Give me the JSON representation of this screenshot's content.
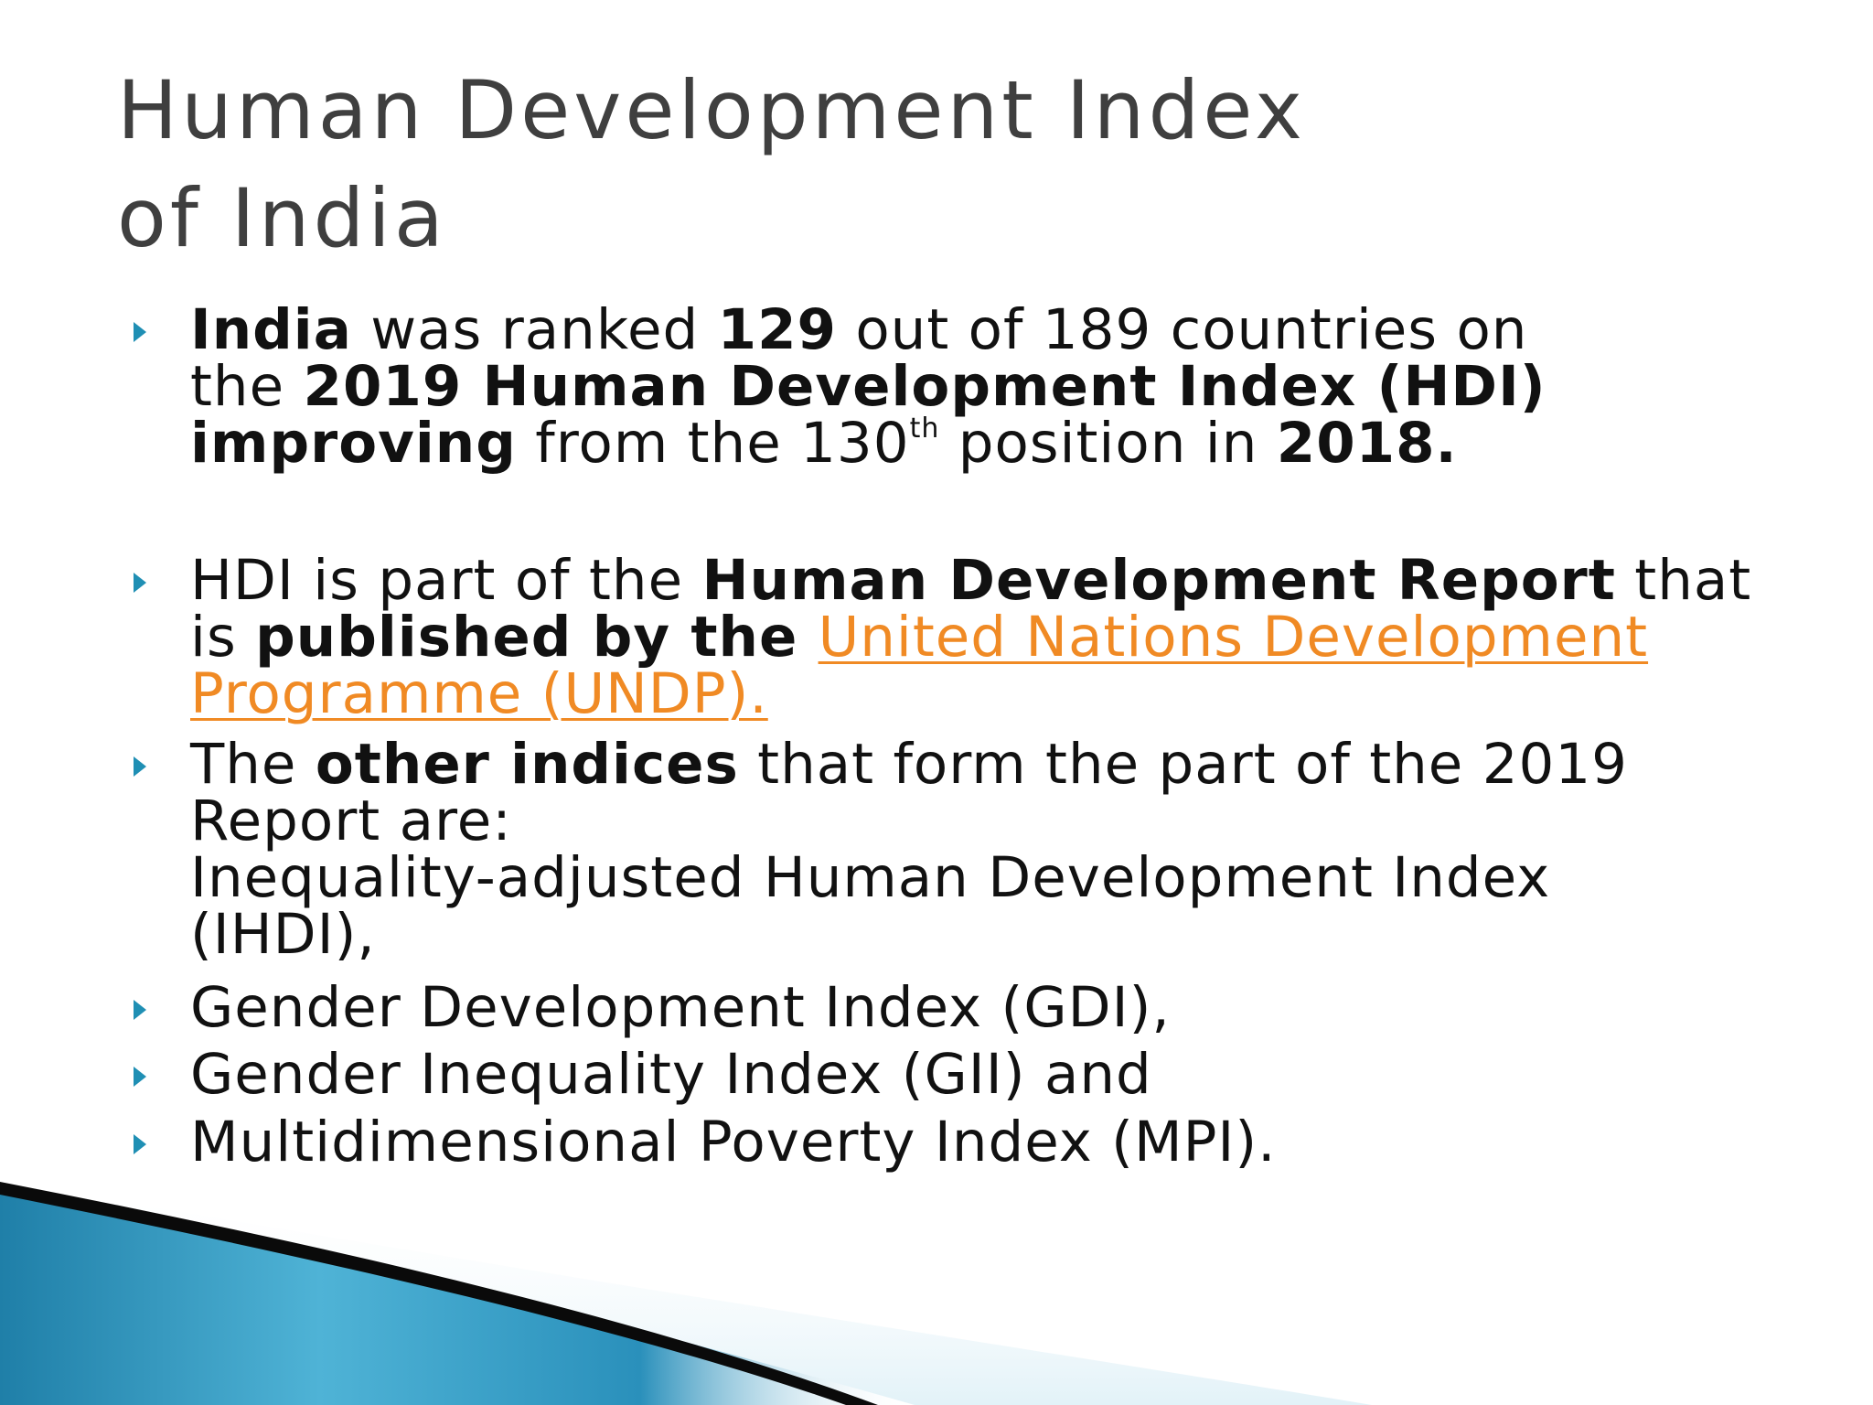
{
  "slide": {
    "title_line1": "Human Development Index",
    "title_line2": "of India",
    "bullets": [
      {
        "lines": [
          [
            "India",
            " was ranked ",
            "129",
            " out of 189 countries on"
          ],
          [
            "the ",
            "2019 Human Development Index (HDI)"
          ],
          [
            "improving",
            " from the ",
            "130",
            "th",
            " position in ",
            "2018."
          ]
        ]
      },
      {
        "lines": [
          [
            "HDI is part of the ",
            "Human Development Report",
            " that"
          ],
          [
            "is ",
            "published by the ",
            "United Nations Development"
          ],
          [
            "Programme (UNDP)."
          ]
        ]
      },
      {
        "lines": [
          [
            "The ",
            "other indices",
            " that form the part of the 2019"
          ],
          [
            "Report are:"
          ],
          [
            "Inequality-adjusted Human Development Index"
          ],
          [
            "(IHDI),"
          ]
        ]
      },
      {
        "text": "Gender Development Index (GDI),"
      },
      {
        "text": "Gender Inequality Index (GII) and"
      },
      {
        "text": "Multidimensional Poverty Index (MPI)."
      }
    ]
  },
  "colors": {
    "title": "#3f3f3f",
    "text": "#111111",
    "link": "#f08a24",
    "bullet_marker": "#1f8fb4",
    "decor_blue": "#2c8fb8",
    "decor_dark": "#0a0a0a"
  }
}
